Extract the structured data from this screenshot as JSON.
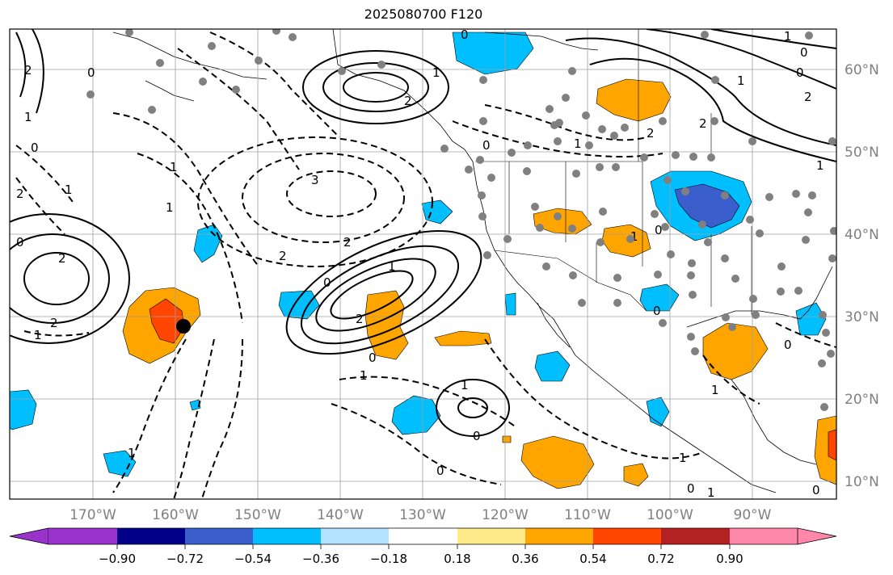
{
  "title": "2025080700 F120",
  "lon_labels": [
    "170°W",
    "160°W",
    "150°W",
    "140°W",
    "130°W",
    "120°W",
    "110°W",
    "100°W",
    "90°W"
  ],
  "lat_labels": [
    "60°N",
    "50°N",
    "40°N",
    "30°N",
    "20°N",
    "10°N"
  ],
  "colorbar": {
    "colors": [
      "#9933cc",
      "#00008b",
      "#3a5fcd",
      "#00bfff",
      "#b2e2ff",
      "#ffffff",
      "#ffea8a",
      "#ffa500",
      "#ff4500",
      "#b22222",
      "#ff88aa"
    ],
    "tick_labels": [
      "−0.90",
      "−0.72",
      "−0.54",
      "−0.36",
      "−0.18",
      "0.18",
      "0.36",
      "0.54",
      "0.72",
      "0.90"
    ]
  },
  "contour_labels": [
    "2",
    "1",
    "0",
    "1",
    "2",
    "0",
    "1",
    "2",
    "2",
    "0",
    "1",
    "2",
    "3",
    "2",
    "1",
    "0",
    "1",
    "0",
    "1",
    "0",
    "0",
    "1",
    "1",
    "0",
    "1",
    "2",
    "2",
    "2",
    "2",
    "1",
    "0",
    "1",
    "0",
    "1",
    "1",
    "2",
    "1",
    "0",
    "0",
    "1",
    "0",
    "1",
    "0",
    "1",
    "0",
    "0"
  ],
  "storm_marker": {
    "lon": -158.8,
    "lat": 29.1
  }
}
